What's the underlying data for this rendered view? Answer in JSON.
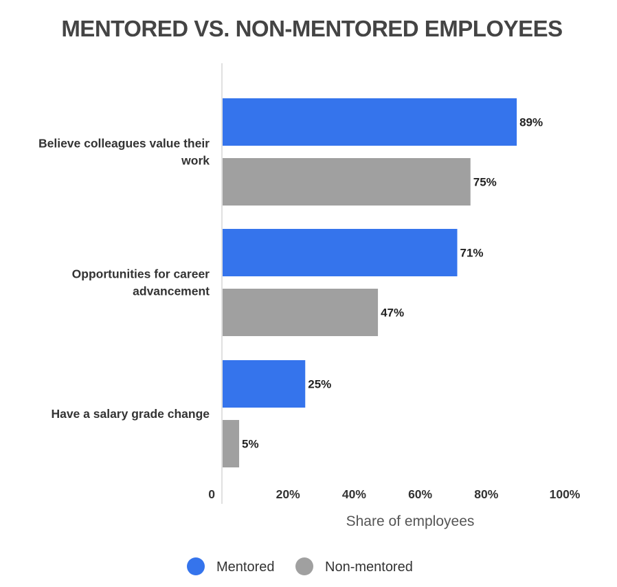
{
  "chart_data": {
    "type": "bar",
    "orientation": "horizontal",
    "title": "MENTORED VS. NON-MENTORED EMPLOYEES",
    "xlabel": "Share of employees",
    "ylabel": "",
    "xlim": [
      0,
      100
    ],
    "x_ticks": [
      {
        "value": 0,
        "label": "0"
      },
      {
        "value": 20,
        "label": "20%"
      },
      {
        "value": 40,
        "label": "40%"
      },
      {
        "value": 60,
        "label": "60%"
      },
      {
        "value": 80,
        "label": "80%"
      },
      {
        "value": 100,
        "label": "100%"
      }
    ],
    "categories": [
      [
        "Believe colleagues value their",
        "work"
      ],
      [
        "Opportunities for career",
        "advancement"
      ],
      [
        "Have a salary grade change"
      ]
    ],
    "series": [
      {
        "name": "Mentored",
        "color": "#3574EC",
        "values": [
          89,
          71,
          25
        ],
        "labels": [
          "89%",
          "71%",
          "25%"
        ]
      },
      {
        "name": "Non-mentored",
        "color": "#A0A0A0",
        "values": [
          75,
          47,
          5
        ],
        "labels": [
          "75%",
          "47%",
          "5%"
        ]
      }
    ],
    "grid": false,
    "legend_position": "bottom-center",
    "data_labels": true
  }
}
